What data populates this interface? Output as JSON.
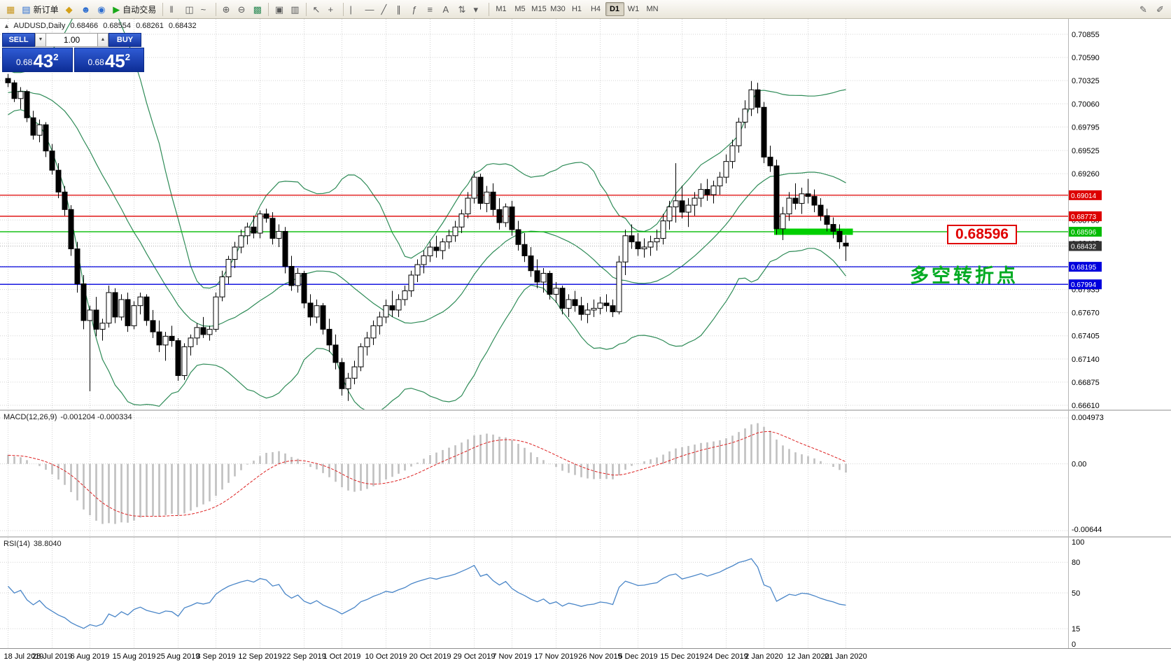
{
  "toolbar": {
    "groups": [
      {
        "items": [
          {
            "name": "new-chart-icon",
            "glyph": "▦",
            "color": "#c8961e"
          },
          {
            "name": "new-order-button",
            "glyph": "▤",
            "color": "#2f6fd0",
            "label": "新订单"
          },
          {
            "name": "favorites-icon",
            "glyph": "◆",
            "color": "#d4a017"
          },
          {
            "name": "navigator-icon",
            "glyph": "☻",
            "color": "#2f6fd0"
          },
          {
            "name": "terminal-icon",
            "glyph": "◉",
            "color": "#2f6fd0"
          },
          {
            "name": "autotrade-button",
            "glyph": "▶",
            "color": "#18a818",
            "label": "自动交易"
          }
        ]
      },
      {
        "items": [
          {
            "name": "bar-chart-icon",
            "glyph": "‖"
          },
          {
            "name": "candlestick-chart-icon",
            "glyph": "◫"
          },
          {
            "name": "line-chart-icon",
            "glyph": "~"
          }
        ]
      },
      {
        "items": [
          {
            "name": "zoom-in-icon",
            "glyph": "⊕"
          },
          {
            "name": "zoom-out-icon",
            "glyph": "⊖"
          },
          {
            "name": "indicators-icon",
            "glyph": "▩",
            "color": "#2e8b57"
          }
        ]
      },
      {
        "items": [
          {
            "name": "tile-windows-icon",
            "glyph": "▣"
          },
          {
            "name": "cascade-windows-icon",
            "glyph": "▥"
          }
        ]
      },
      {
        "items": [
          {
            "name": "cursor-icon",
            "glyph": "↖"
          },
          {
            "name": "crosshair-icon",
            "glyph": "+"
          }
        ]
      },
      {
        "items": [
          {
            "name": "vertical-line-icon",
            "glyph": "|"
          },
          {
            "name": "horizontal-line-icon",
            "glyph": "—"
          },
          {
            "name": "trendline-icon",
            "glyph": "╱"
          },
          {
            "name": "channel-icon",
            "glyph": "∥"
          },
          {
            "name": "fibonacci-icon",
            "glyph": "ƒ"
          },
          {
            "name": "shapes-icon",
            "glyph": "≡"
          },
          {
            "name": "text-icon",
            "glyph": "A"
          },
          {
            "name": "arrows-icon",
            "glyph": "⇅"
          },
          {
            "name": "more-tools-icon",
            "glyph": "▾"
          }
        ]
      }
    ],
    "timeframes": [
      {
        "label": "M1"
      },
      {
        "label": "M5"
      },
      {
        "label": "M15"
      },
      {
        "label": "M30"
      },
      {
        "label": "H1"
      },
      {
        "label": "H4"
      },
      {
        "label": "D1",
        "active": true
      },
      {
        "label": "W1"
      },
      {
        "label": "MN"
      }
    ],
    "right_icons": [
      {
        "name": "edit-chart-icon",
        "glyph": "✎"
      },
      {
        "name": "edit-objects-icon",
        "glyph": "✐"
      }
    ]
  },
  "chart": {
    "info": {
      "toggle": "▲",
      "symbol_period": "AUDUSD,Daily",
      "open": "0.68466",
      "high": "0.68554",
      "low": "0.68261",
      "close": "0.68432"
    },
    "trade_panel": {
      "sell_label": "SELL",
      "buy_label": "BUY",
      "volume": "1.00",
      "down_glyph": "▼",
      "up_glyph": "▲",
      "sell_prefix": "0.68",
      "sell_main": "43",
      "sell_sup": "2",
      "buy_prefix": "0.68",
      "buy_main": "45",
      "buy_sup": "2"
    },
    "levels": [
      {
        "price": 0.69014,
        "label": "0.69014",
        "color": "#dd0000"
      },
      {
        "price": 0.68773,
        "label": "0.68773",
        "color": "#dd0000"
      },
      {
        "price": 0.68596,
        "label": "0.68596",
        "color": "#00bb00"
      },
      {
        "price": 0.68195,
        "label": "0.68195",
        "color": "#0000dd"
      },
      {
        "price": 0.67994,
        "label": "0.67994",
        "color": "#0000dd"
      }
    ],
    "current_price": {
      "price": 0.68432,
      "label": "0.68432",
      "color": "#333333"
    },
    "highlight": {
      "price": 0.68596,
      "start_index": 122,
      "end_index": 134.5,
      "color": "#00cf00",
      "thickness": 9
    },
    "callout": {
      "text": "0.68596"
    },
    "annotation": {
      "text": "多空转折点"
    },
    "scale_labels": [
      "0.70855",
      "0.70590",
      "0.70325",
      "0.70060",
      "0.69795",
      "0.69525",
      "0.69260",
      "0.68995",
      "0.68730",
      "0.68465",
      "0.68200",
      "0.67935",
      "0.67670",
      "0.67405",
      "0.67140",
      "0.66875",
      "0.66610"
    ]
  },
  "indicators": {
    "macd": {
      "name": "MACD(12,26,9)",
      "values": "-0.001204 -0.000334",
      "fast": 12,
      "slow": 26,
      "signal": 9,
      "histogram_color": "#c0c0c0",
      "signal_color": "#dd2222",
      "scale_labels": [
        {
          "label": "0.004973",
          "pin": "top"
        },
        {
          "label": "0.00",
          "pin": "zero"
        },
        {
          "label": "-0.00644",
          "pin": "bottom"
        }
      ]
    },
    "rsi": {
      "name": "RSI(14)",
      "value_text": "38.8040",
      "period": 14,
      "color": "#4a86c8",
      "scale_labels": [
        {
          "label": "100",
          "value": 100
        },
        {
          "label": "80",
          "value": 80
        },
        {
          "label": "50",
          "value": 50
        },
        {
          "label": "15",
          "value": 15
        },
        {
          "label": "0",
          "value": 0
        }
      ],
      "level_lines": [
        80,
        50,
        15
      ]
    }
  },
  "chart_data": {
    "type": "candlestick",
    "symbol": "AUDUSD",
    "timeframe": "Daily",
    "title": "AUDUSD,Daily",
    "price_axis": {
      "min": 0.6661,
      "max": 0.70855
    },
    "bollinger": {
      "period": 20,
      "deviation": 2,
      "color": "#2e8b57"
    },
    "warmup_closes": [
      0.6988,
      0.6975,
      0.6992,
      0.698,
      0.6996,
      0.6985,
      0.7002,
      0.699,
      0.7008,
      0.6998,
      0.7012,
      0.7002,
      0.7018,
      0.7008,
      0.702,
      0.7012,
      0.7024,
      0.7016,
      0.7028,
      0.702,
      0.7032,
      0.7024,
      0.7035,
      0.7028,
      0.7038,
      0.7032
    ],
    "candles": [
      [
        0.7035,
        0.704,
        0.7025,
        0.703
      ],
      [
        0.703,
        0.7033,
        0.7008,
        0.7012
      ],
      [
        0.7012,
        0.7025,
        0.7,
        0.702
      ],
      [
        0.702,
        0.7022,
        0.6985,
        0.699
      ],
      [
        0.699,
        0.6998,
        0.6965,
        0.697
      ],
      [
        0.697,
        0.6988,
        0.6962,
        0.6982
      ],
      [
        0.6982,
        0.6985,
        0.6945,
        0.6952
      ],
      [
        0.6952,
        0.696,
        0.6925,
        0.693
      ],
      [
        0.693,
        0.6938,
        0.6898,
        0.6905
      ],
      [
        0.6905,
        0.6912,
        0.6878,
        0.6885
      ],
      [
        0.6885,
        0.689,
        0.6832,
        0.684
      ],
      [
        0.684,
        0.6848,
        0.679,
        0.68
      ],
      [
        0.68,
        0.681,
        0.6748,
        0.6758
      ],
      [
        0.6758,
        0.6775,
        0.6677,
        0.677
      ],
      [
        0.677,
        0.6785,
        0.674,
        0.6748
      ],
      [
        0.6748,
        0.676,
        0.6735,
        0.6755
      ],
      [
        0.6755,
        0.6798,
        0.675,
        0.679
      ],
      [
        0.679,
        0.6795,
        0.6755,
        0.6762
      ],
      [
        0.6762,
        0.6788,
        0.6758,
        0.6782
      ],
      [
        0.6782,
        0.679,
        0.6745,
        0.6752
      ],
      [
        0.6752,
        0.678,
        0.6748,
        0.6775
      ],
      [
        0.6775,
        0.679,
        0.6765,
        0.6785
      ],
      [
        0.6785,
        0.6788,
        0.6752,
        0.6758
      ],
      [
        0.6758,
        0.677,
        0.6738,
        0.6745
      ],
      [
        0.6745,
        0.6758,
        0.6722,
        0.673
      ],
      [
        0.673,
        0.6745,
        0.6712,
        0.674
      ],
      [
        0.674,
        0.6752,
        0.6728,
        0.6735
      ],
      [
        0.6735,
        0.6738,
        0.6689,
        0.6695
      ],
      [
        0.6695,
        0.6732,
        0.669,
        0.6728
      ],
      [
        0.6728,
        0.6742,
        0.6718,
        0.6738
      ],
      [
        0.6738,
        0.6755,
        0.673,
        0.675
      ],
      [
        0.675,
        0.6762,
        0.6738,
        0.6742
      ],
      [
        0.6742,
        0.6752,
        0.6735,
        0.6748
      ],
      [
        0.6748,
        0.679,
        0.6745,
        0.6785
      ],
      [
        0.6785,
        0.6815,
        0.678,
        0.6808
      ],
      [
        0.6808,
        0.6832,
        0.68,
        0.6828
      ],
      [
        0.6828,
        0.6848,
        0.6818,
        0.6842
      ],
      [
        0.6842,
        0.6862,
        0.6835,
        0.6855
      ],
      [
        0.6855,
        0.687,
        0.6845,
        0.6865
      ],
      [
        0.6865,
        0.6878,
        0.6852,
        0.6858
      ],
      [
        0.6858,
        0.6884,
        0.6852,
        0.688
      ],
      [
        0.688,
        0.6886,
        0.687,
        0.6875
      ],
      [
        0.6875,
        0.6882,
        0.6845,
        0.6852
      ],
      [
        0.6852,
        0.6868,
        0.6842,
        0.686
      ],
      [
        0.686,
        0.6865,
        0.6812,
        0.682
      ],
      [
        0.682,
        0.6832,
        0.6792,
        0.6798
      ],
      [
        0.6798,
        0.6818,
        0.679,
        0.6812
      ],
      [
        0.6812,
        0.6815,
        0.6772,
        0.6778
      ],
      [
        0.6778,
        0.6788,
        0.6752,
        0.6762
      ],
      [
        0.6762,
        0.6782,
        0.6755,
        0.6775
      ],
      [
        0.6775,
        0.6778,
        0.6742,
        0.6748
      ],
      [
        0.6748,
        0.676,
        0.6722,
        0.673
      ],
      [
        0.673,
        0.6742,
        0.6702,
        0.671
      ],
      [
        0.671,
        0.6715,
        0.6672,
        0.668
      ],
      [
        0.668,
        0.6698,
        0.6666,
        0.6692
      ],
      [
        0.6692,
        0.6712,
        0.6685,
        0.6705
      ],
      [
        0.6705,
        0.6732,
        0.67,
        0.6728
      ],
      [
        0.6728,
        0.6745,
        0.6718,
        0.6738
      ],
      [
        0.6738,
        0.6758,
        0.673,
        0.6752
      ],
      [
        0.6752,
        0.6768,
        0.6742,
        0.6762
      ],
      [
        0.6762,
        0.6782,
        0.6755,
        0.6775
      ],
      [
        0.6775,
        0.6792,
        0.6762,
        0.677
      ],
      [
        0.677,
        0.6788,
        0.6762,
        0.6782
      ],
      [
        0.6782,
        0.6798,
        0.6775,
        0.6792
      ],
      [
        0.6792,
        0.6815,
        0.6785,
        0.681
      ],
      [
        0.681,
        0.6828,
        0.6802,
        0.6822
      ],
      [
        0.6822,
        0.6838,
        0.6812,
        0.6832
      ],
      [
        0.6832,
        0.6848,
        0.6825,
        0.6842
      ],
      [
        0.6842,
        0.6855,
        0.683,
        0.6838
      ],
      [
        0.6838,
        0.6852,
        0.6828,
        0.6848
      ],
      [
        0.6848,
        0.6862,
        0.684,
        0.6855
      ],
      [
        0.6855,
        0.6872,
        0.6848,
        0.6865
      ],
      [
        0.6865,
        0.6885,
        0.6858,
        0.688
      ],
      [
        0.688,
        0.6905,
        0.6875,
        0.6898
      ],
      [
        0.6898,
        0.6929,
        0.6892,
        0.6922
      ],
      [
        0.6922,
        0.6926,
        0.6885,
        0.6892
      ],
      [
        0.6892,
        0.6912,
        0.6882,
        0.6905
      ],
      [
        0.6905,
        0.6915,
        0.6878,
        0.6885
      ],
      [
        0.6885,
        0.6898,
        0.6862,
        0.687
      ],
      [
        0.687,
        0.6892,
        0.6865,
        0.6888
      ],
      [
        0.6888,
        0.6895,
        0.6855,
        0.6862
      ],
      [
        0.6862,
        0.6872,
        0.6838,
        0.6845
      ],
      [
        0.6845,
        0.6858,
        0.6825,
        0.6832
      ],
      [
        0.6832,
        0.6842,
        0.6808,
        0.6815
      ],
      [
        0.6815,
        0.6828,
        0.6795,
        0.6802
      ],
      [
        0.6802,
        0.6818,
        0.679,
        0.6812
      ],
      [
        0.6812,
        0.6815,
        0.6782,
        0.6788
      ],
      [
        0.6788,
        0.6802,
        0.6778,
        0.6795
      ],
      [
        0.6795,
        0.6798,
        0.6765,
        0.6772
      ],
      [
        0.6772,
        0.6788,
        0.6762,
        0.6782
      ],
      [
        0.6782,
        0.6792,
        0.6768,
        0.6775
      ],
      [
        0.6775,
        0.6785,
        0.6758,
        0.6765
      ],
      [
        0.6765,
        0.6778,
        0.6755,
        0.677
      ],
      [
        0.677,
        0.6782,
        0.6762,
        0.6772
      ],
      [
        0.6772,
        0.6785,
        0.6765,
        0.6778
      ],
      [
        0.6778,
        0.6788,
        0.6768,
        0.6775
      ],
      [
        0.6775,
        0.6782,
        0.6762,
        0.6768
      ],
      [
        0.6768,
        0.6832,
        0.6765,
        0.6825
      ],
      [
        0.6825,
        0.6862,
        0.681,
        0.6855
      ],
      [
        0.6855,
        0.6868,
        0.684,
        0.6848
      ],
      [
        0.6848,
        0.6858,
        0.6832,
        0.684
      ],
      [
        0.684,
        0.6852,
        0.683,
        0.6842
      ],
      [
        0.6842,
        0.6855,
        0.6832,
        0.6848
      ],
      [
        0.6848,
        0.6862,
        0.6838,
        0.6852
      ],
      [
        0.6852,
        0.688,
        0.6845,
        0.6872
      ],
      [
        0.6872,
        0.6895,
        0.6862,
        0.6888
      ],
      [
        0.6888,
        0.6938,
        0.687,
        0.6895
      ],
      [
        0.6895,
        0.6912,
        0.6875,
        0.6882
      ],
      [
        0.6882,
        0.6898,
        0.6865,
        0.689
      ],
      [
        0.689,
        0.6905,
        0.6878,
        0.6898
      ],
      [
        0.6898,
        0.6915,
        0.6888,
        0.6908
      ],
      [
        0.6908,
        0.692,
        0.6895,
        0.6902
      ],
      [
        0.6902,
        0.6918,
        0.6892,
        0.6912
      ],
      [
        0.6912,
        0.6928,
        0.6902,
        0.6922
      ],
      [
        0.6922,
        0.6948,
        0.6915,
        0.694
      ],
      [
        0.694,
        0.6965,
        0.6932,
        0.6958
      ],
      [
        0.6958,
        0.699,
        0.695,
        0.6985
      ],
      [
        0.6985,
        0.701,
        0.6978,
        0.7
      ],
      [
        0.7,
        0.7032,
        0.6992,
        0.7022
      ],
      [
        0.7022,
        0.703,
        0.6995,
        0.7002
      ],
      [
        0.7002,
        0.7008,
        0.6938,
        0.6945
      ],
      [
        0.6945,
        0.6958,
        0.6928,
        0.6935
      ],
      [
        0.6935,
        0.6942,
        0.6856,
        0.6863
      ],
      [
        0.6863,
        0.6888,
        0.685,
        0.688
      ],
      [
        0.688,
        0.6905,
        0.6872,
        0.6898
      ],
      [
        0.6898,
        0.6915,
        0.6885,
        0.6892
      ],
      [
        0.6892,
        0.691,
        0.688,
        0.6903
      ],
      [
        0.6903,
        0.692,
        0.6892,
        0.69
      ],
      [
        0.69,
        0.6908,
        0.6882,
        0.689
      ],
      [
        0.689,
        0.6898,
        0.6872,
        0.6878
      ],
      [
        0.6878,
        0.6886,
        0.686,
        0.6868
      ],
      [
        0.6868,
        0.6876,
        0.6852,
        0.686
      ],
      [
        0.686,
        0.6868,
        0.684,
        0.6848
      ],
      [
        0.68466,
        0.68554,
        0.68261,
        0.68432
      ]
    ],
    "date_labels": [
      {
        "text": "18 Jul 2019",
        "index": 0
      },
      {
        "text": "28 Jul 2019",
        "index": 7
      },
      {
        "text": "6 Aug 2019",
        "index": 13
      },
      {
        "text": "15 Aug 2019",
        "index": 20
      },
      {
        "text": "25 Aug 2019",
        "index": 27
      },
      {
        "text": "3 Sep 2019",
        "index": 33
      },
      {
        "text": "12 Sep 2019",
        "index": 40
      },
      {
        "text": "22 Sep 2019",
        "index": 47
      },
      {
        "text": "1 Oct 2019",
        "index": 53
      },
      {
        "text": "10 Oct 2019",
        "index": 60
      },
      {
        "text": "20 Oct 2019",
        "index": 67
      },
      {
        "text": "29 Oct 2019",
        "index": 74
      },
      {
        "text": "7 Nov 2019",
        "index": 80
      },
      {
        "text": "17 Nov 2019",
        "index": 87
      },
      {
        "text": "26 Nov 2019",
        "index": 94
      },
      {
        "text": "5 Dec 2019",
        "index": 100
      },
      {
        "text": "15 Dec 2019",
        "index": 107
      },
      {
        "text": "24 Dec 2019",
        "index": 114
      },
      {
        "text": "2 Jan 2020",
        "index": 120
      },
      {
        "text": "12 Jan 2020",
        "index": 127
      },
      {
        "text": "21 Jan 2020",
        "index": 133
      }
    ]
  }
}
